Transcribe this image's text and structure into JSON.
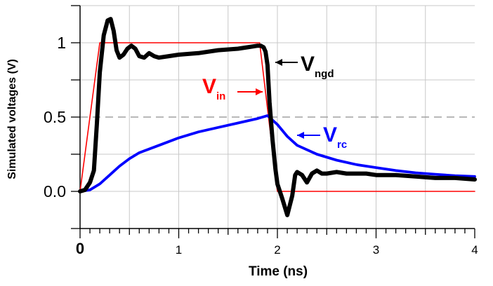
{
  "chart_data": {
    "type": "line",
    "xlabel": "Time (ns)",
    "ylabel": "Simulated voltages (V)",
    "xlim": [
      0,
      4
    ],
    "ylim": [
      -0.25,
      1.25
    ],
    "x_ticks": [
      {
        "value": 0,
        "label": "0"
      },
      {
        "value": 1,
        "label": "1"
      },
      {
        "value": 2,
        "label": "2"
      },
      {
        "value": 3,
        "label": "3"
      },
      {
        "value": 4,
        "label": "4"
      }
    ],
    "y_ticks": [
      {
        "value": 0,
        "label": "0.0"
      },
      {
        "value": 0.5,
        "label": "0.5"
      },
      {
        "value": 1,
        "label": "1"
      }
    ],
    "grid": true,
    "reference_line": {
      "y": 0.5,
      "style": "dashed"
    },
    "series": [
      {
        "name": "V_in",
        "color": "#ff0000",
        "x": [
          0,
          0.2,
          1.82,
          2.0,
          4.0
        ],
        "y": [
          0,
          1,
          1,
          0,
          0
        ]
      },
      {
        "name": "V_rc",
        "color": "#0000ff",
        "x": [
          0,
          0.1,
          0.2,
          0.3,
          0.4,
          0.5,
          0.6,
          0.8,
          1.0,
          1.2,
          1.4,
          1.6,
          1.8,
          1.9,
          2.0,
          2.1,
          2.2,
          2.4,
          2.6,
          2.8,
          3.0,
          3.2,
          3.4,
          3.6,
          3.8,
          4.0
        ],
        "y": [
          0,
          0.01,
          0.05,
          0.11,
          0.17,
          0.22,
          0.26,
          0.31,
          0.36,
          0.4,
          0.43,
          0.46,
          0.49,
          0.51,
          0.45,
          0.37,
          0.31,
          0.25,
          0.21,
          0.18,
          0.16,
          0.14,
          0.125,
          0.115,
          0.105,
          0.1
        ]
      },
      {
        "name": "V_ngd",
        "color": "#000000",
        "x": [
          0,
          0.05,
          0.1,
          0.14,
          0.17,
          0.2,
          0.24,
          0.28,
          0.31,
          0.34,
          0.37,
          0.4,
          0.44,
          0.48,
          0.52,
          0.56,
          0.6,
          0.65,
          0.7,
          0.75,
          0.8,
          0.9,
          1.0,
          1.2,
          1.4,
          1.6,
          1.7,
          1.8,
          1.83,
          1.86,
          1.88,
          1.9,
          1.92,
          1.95,
          1.98,
          2.0,
          2.05,
          2.1,
          2.15,
          2.18,
          2.2,
          2.25,
          2.3,
          2.35,
          2.4,
          2.45,
          2.5,
          2.6,
          2.7,
          2.8,
          2.9,
          3.0,
          3.2,
          3.4,
          3.6,
          3.8,
          4.0
        ],
        "y": [
          0,
          0.01,
          0.06,
          0.14,
          0.45,
          0.8,
          1.05,
          1.15,
          1.16,
          1.08,
          0.95,
          0.9,
          0.92,
          0.96,
          0.98,
          0.96,
          0.91,
          0.9,
          0.93,
          0.91,
          0.9,
          0.91,
          0.92,
          0.93,
          0.95,
          0.96,
          0.97,
          0.98,
          0.98,
          0.97,
          0.94,
          0.85,
          0.6,
          0.35,
          0.15,
          0.05,
          -0.05,
          -0.16,
          -0.03,
          0.11,
          0.13,
          0.11,
          0.06,
          0.12,
          0.14,
          0.12,
          0.12,
          0.13,
          0.12,
          0.12,
          0.12,
          0.11,
          0.11,
          0.1,
          0.09,
          0.09,
          0.08
        ]
      }
    ],
    "annotations": [
      {
        "main": "V",
        "sub": "ngd",
        "color": "#000000",
        "target_series": "V_ngd"
      },
      {
        "main": "V",
        "sub": "in",
        "color": "#ff0000",
        "target_series": "V_in"
      },
      {
        "main": "V",
        "sub": "rc",
        "color": "#0000ff",
        "target_series": "V_rc"
      }
    ]
  }
}
